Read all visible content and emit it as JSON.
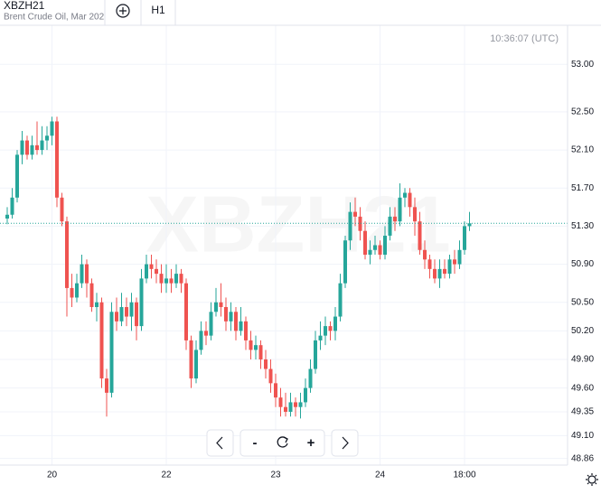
{
  "header": {
    "symbol": "XBZH21",
    "description": "Brent Crude Oil, Mar 202",
    "interval": "H1"
  },
  "controls": {
    "zoom_out": "-",
    "zoom_in": "+"
  },
  "chart_data": {
    "type": "candlestick",
    "watermark": "XBZH21",
    "timestamp": "10:36:07 (UTC)",
    "up_color": "#26a69a",
    "down_color": "#ef5350",
    "last_price": 51.33,
    "last_price_color": "#26a69a",
    "grid": true,
    "categories": [
      null,
      null,
      null,
      null,
      null,
      null,
      null,
      null,
      null,
      "20",
      null,
      null,
      null,
      null,
      null,
      null,
      null,
      null,
      null,
      null,
      null,
      null,
      null,
      null,
      null,
      null,
      null,
      null,
      null,
      null,
      null,
      null,
      "22",
      null,
      null,
      null,
      null,
      null,
      null,
      null,
      null,
      null,
      null,
      null,
      null,
      null,
      null,
      null,
      null,
      null,
      null,
      null,
      null,
      null,
      "23",
      null,
      null,
      null,
      null,
      null,
      null,
      null,
      null,
      null,
      null,
      null,
      null,
      null,
      null,
      null,
      null,
      null,
      null,
      null,
      null,
      "24",
      null,
      null,
      null,
      null,
      null,
      null,
      null,
      null,
      null,
      null,
      null,
      null,
      null,
      null,
      null,
      null,
      "18:00",
      null
    ],
    "open": [
      51.38,
      51.42,
      51.6,
      52.05,
      52.2,
      52.05,
      52.15,
      52.1,
      52.2,
      52.25,
      52.4,
      51.6,
      51.35,
      50.65,
      50.55,
      50.7,
      50.9,
      50.7,
      50.45,
      50.5,
      49.7,
      49.55,
      50.4,
      50.3,
      50.45,
      50.35,
      50.5,
      50.25,
      50.75,
      50.9,
      50.85,
      50.8,
      50.7,
      50.75,
      50.7,
      50.8,
      50.7,
      50.1,
      49.7,
      50.0,
      50.2,
      50.15,
      50.4,
      50.5,
      50.45,
      50.3,
      50.4,
      50.2,
      50.3,
      50.1,
      50.0,
      50.05,
      49.9,
      49.8,
      49.65,
      49.5,
      49.4,
      49.35,
      49.45,
      49.4,
      49.45,
      49.6,
      49.8,
      50.1,
      50.15,
      50.25,
      50.2,
      50.35,
      50.7,
      51.15,
      51.45,
      51.4,
      51.25,
      51.0,
      51.05,
      51.1,
      51.0,
      51.2,
      51.4,
      51.35,
      51.6,
      51.65,
      51.5,
      51.35,
      51.05,
      50.95,
      50.85,
      50.75,
      50.85,
      50.8,
      50.95,
      50.9,
      51.05,
      51.3
    ],
    "high": [
      51.5,
      51.7,
      52.1,
      52.3,
      52.25,
      52.25,
      52.4,
      52.35,
      52.35,
      52.45,
      52.45,
      51.65,
      51.4,
      50.8,
      50.8,
      51.0,
      50.95,
      50.75,
      50.6,
      50.55,
      49.8,
      50.5,
      50.55,
      50.6,
      50.55,
      50.6,
      50.55,
      50.85,
      51.0,
      51.0,
      50.95,
      50.9,
      50.9,
      50.85,
      50.9,
      50.85,
      50.75,
      50.15,
      50.1,
      50.3,
      50.3,
      50.5,
      50.65,
      50.7,
      50.55,
      50.5,
      50.45,
      50.45,
      50.35,
      50.2,
      50.15,
      50.1,
      50.0,
      49.9,
      49.75,
      49.6,
      49.55,
      49.55,
      49.5,
      49.55,
      49.7,
      49.9,
      50.2,
      50.3,
      50.35,
      50.3,
      50.45,
      50.8,
      51.2,
      51.55,
      51.6,
      51.5,
      51.35,
      51.15,
      51.2,
      51.15,
      51.3,
      51.5,
      51.5,
      51.75,
      51.7,
      51.7,
      51.6,
      51.45,
      51.15,
      51.0,
      50.95,
      50.95,
      50.95,
      51.0,
      51.05,
      51.15,
      51.35,
      51.45
    ],
    "low": [
      51.32,
      51.38,
      51.55,
      51.95,
      52.0,
      52.0,
      52.05,
      52.05,
      52.1,
      52.15,
      51.5,
      51.3,
      50.35,
      50.45,
      50.5,
      50.65,
      50.55,
      50.4,
      50.3,
      49.6,
      49.3,
      49.5,
      50.2,
      50.25,
      50.25,
      50.2,
      50.1,
      50.2,
      50.7,
      50.75,
      50.7,
      50.6,
      50.6,
      50.6,
      50.65,
      50.6,
      50.0,
      49.6,
      49.65,
      49.95,
      50.05,
      50.1,
      50.35,
      50.35,
      50.2,
      50.2,
      50.1,
      50.15,
      50.0,
      49.9,
      49.9,
      49.8,
      49.7,
      49.55,
      49.4,
      49.3,
      49.3,
      49.3,
      49.3,
      49.28,
      49.4,
      49.55,
      49.75,
      50.0,
      50.05,
      50.1,
      50.1,
      50.3,
      50.65,
      51.05,
      51.3,
      51.15,
      50.95,
      50.9,
      51.0,
      50.95,
      50.95,
      51.15,
      51.25,
      51.3,
      51.5,
      51.4,
      51.2,
      51.0,
      50.85,
      50.75,
      50.7,
      50.65,
      50.75,
      50.75,
      50.8,
      50.85,
      51.0,
      51.25
    ],
    "close": [
      51.42,
      51.6,
      52.05,
      52.2,
      52.05,
      52.15,
      52.1,
      52.2,
      52.25,
      52.4,
      51.6,
      51.35,
      50.65,
      50.55,
      50.7,
      50.9,
      50.7,
      50.45,
      50.5,
      49.7,
      49.55,
      50.4,
      50.3,
      50.45,
      50.35,
      50.5,
      50.25,
      50.75,
      50.9,
      50.85,
      50.8,
      50.7,
      50.75,
      50.7,
      50.8,
      50.7,
      50.1,
      49.7,
      50.0,
      50.2,
      50.15,
      50.4,
      50.5,
      50.45,
      50.3,
      50.4,
      50.2,
      50.3,
      50.1,
      50.0,
      50.05,
      49.9,
      49.8,
      49.65,
      49.5,
      49.4,
      49.35,
      49.45,
      49.4,
      49.45,
      49.6,
      49.8,
      50.1,
      50.15,
      50.25,
      50.2,
      50.35,
      50.7,
      51.15,
      51.45,
      51.4,
      51.25,
      51.0,
      51.05,
      51.1,
      51.0,
      51.2,
      51.4,
      51.35,
      51.6,
      51.65,
      51.5,
      51.35,
      51.05,
      50.95,
      50.85,
      50.75,
      50.85,
      50.8,
      50.95,
      50.9,
      51.05,
      51.3,
      51.33
    ],
    "ylim": [
      48.79,
      53.41
    ],
    "yticks": [
      {
        "value": 53,
        "label": "53.00"
      },
      {
        "value": 52.5,
        "label": "52.50"
      },
      {
        "value": 52.1,
        "label": "52.10"
      },
      {
        "value": 51.7,
        "label": "51.70"
      },
      {
        "value": 51.3,
        "label": "51.30"
      },
      {
        "value": 50.9,
        "label": "50.90"
      },
      {
        "value": 50.5,
        "label": "50.50"
      },
      {
        "value": 50.2,
        "label": "50.20"
      },
      {
        "value": 49.9,
        "label": "49.90"
      },
      {
        "value": 49.6,
        "label": "49.60"
      },
      {
        "value": 49.35,
        "label": "49.35"
      },
      {
        "value": 49.1,
        "label": "49.10"
      },
      {
        "value": 48.86,
        "label": "48.86"
      }
    ]
  }
}
